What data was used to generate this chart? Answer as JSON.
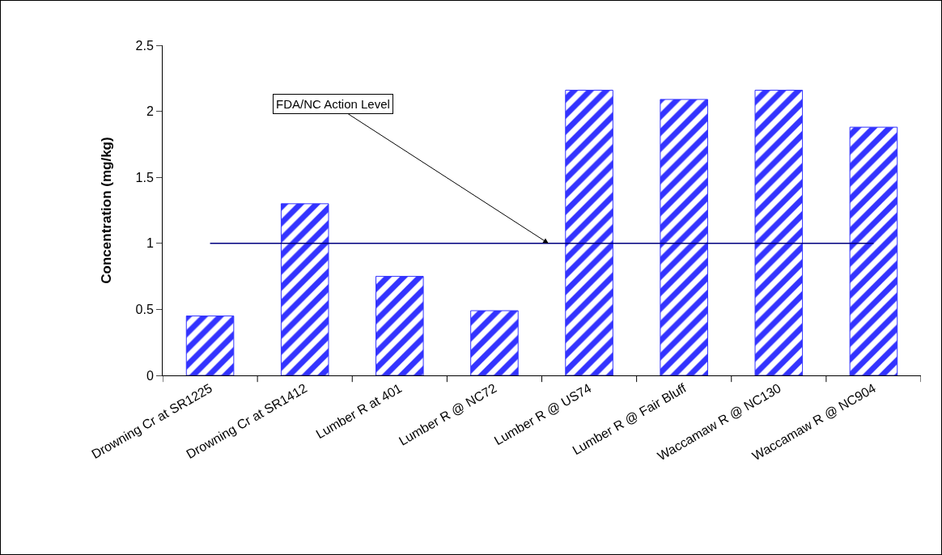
{
  "chart_data": {
    "type": "bar",
    "ylabel": "Concentration (mg/kg)",
    "categories": [
      "Drowning Cr at SR1225",
      "Drowning Cr at SR1412",
      "Lumber R at 401",
      "Lumber R @ NC72",
      "Lumber R @ US74",
      "Lumber R @ Fair Bluff",
      "Waccamaw R @ NC130",
      "Waccamaw R @ NC904"
    ],
    "values": [
      0.45,
      1.3,
      0.75,
      0.49,
      2.16,
      2.09,
      2.16,
      1.88
    ],
    "color": "#3333ff",
    "ylim": [
      0,
      2.5
    ],
    "yticks": [
      0,
      0.5,
      1,
      1.5,
      2,
      2.5
    ],
    "grid": false,
    "legend": false,
    "ref_lines": [
      {
        "axis": "y",
        "value": 1,
        "label": "FDA/NC Action Level",
        "color": "#000080"
      }
    ]
  }
}
